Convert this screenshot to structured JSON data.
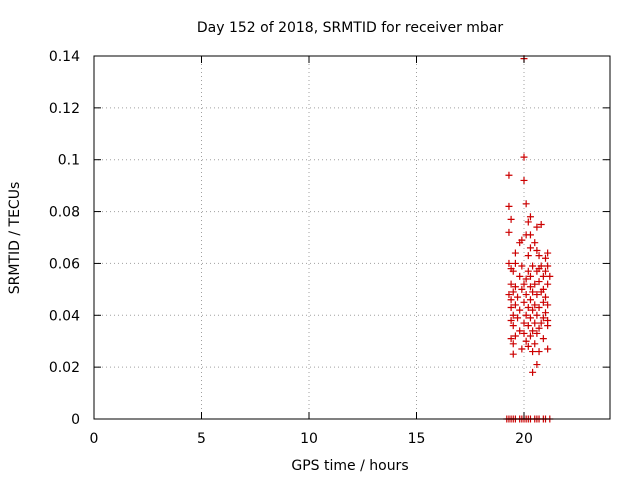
{
  "chart_data": {
    "type": "scatter",
    "title": "Day 152 of 2018, SRMTID for receiver mbar",
    "xlabel": "GPS time / hours",
    "ylabel": "SRMTID / TECUs",
    "xlim": [
      0,
      24
    ],
    "ylim": [
      0,
      0.14
    ],
    "x_ticks": [
      0,
      5,
      10,
      15,
      20
    ],
    "x_tick_labels": [
      "0",
      "5",
      "10",
      "15",
      "20"
    ],
    "y_ticks": [
      0,
      0.02,
      0.04,
      0.06,
      0.08,
      0.1,
      0.12,
      0.14
    ],
    "y_tick_labels": [
      "0",
      "0.02",
      "0.04",
      "0.06",
      "0.08",
      "0.1",
      "0.12",
      "0.14"
    ],
    "grid": true,
    "marker": "plus",
    "color": "#cc0000",
    "points": [
      [
        20.0,
        0.139
      ],
      [
        20.0,
        0.101
      ],
      [
        20.0,
        0.092
      ],
      [
        19.3,
        0.094
      ],
      [
        20.1,
        0.083
      ],
      [
        19.3,
        0.082
      ],
      [
        20.3,
        0.078
      ],
      [
        19.4,
        0.077
      ],
      [
        20.2,
        0.076
      ],
      [
        20.8,
        0.075
      ],
      [
        20.6,
        0.074
      ],
      [
        19.3,
        0.072
      ],
      [
        20.1,
        0.071
      ],
      [
        20.3,
        0.071
      ],
      [
        19.9,
        0.069
      ],
      [
        20.5,
        0.068
      ],
      [
        19.8,
        0.068
      ],
      [
        20.3,
        0.066
      ],
      [
        20.6,
        0.065
      ],
      [
        19.6,
        0.064
      ],
      [
        21.1,
        0.064
      ],
      [
        20.2,
        0.063
      ],
      [
        20.7,
        0.063
      ],
      [
        21.0,
        0.062
      ],
      [
        19.3,
        0.06
      ],
      [
        19.6,
        0.06
      ],
      [
        19.9,
        0.059
      ],
      [
        20.4,
        0.059
      ],
      [
        20.8,
        0.059
      ],
      [
        21.1,
        0.059
      ],
      [
        19.4,
        0.058
      ],
      [
        20.7,
        0.058
      ],
      [
        19.5,
        0.057
      ],
      [
        20.2,
        0.057
      ],
      [
        20.6,
        0.057
      ],
      [
        21.0,
        0.057
      ],
      [
        19.8,
        0.055
      ],
      [
        20.3,
        0.055
      ],
      [
        20.9,
        0.055
      ],
      [
        21.2,
        0.055
      ],
      [
        20.1,
        0.054
      ],
      [
        20.7,
        0.053
      ],
      [
        19.4,
        0.052
      ],
      [
        20.0,
        0.052
      ],
      [
        20.5,
        0.052
      ],
      [
        21.1,
        0.052
      ],
      [
        19.6,
        0.051
      ],
      [
        20.3,
        0.051
      ],
      [
        20.9,
        0.05
      ],
      [
        19.9,
        0.05
      ],
      [
        19.5,
        0.049
      ],
      [
        20.4,
        0.049
      ],
      [
        20.8,
        0.049
      ],
      [
        19.3,
        0.048
      ],
      [
        20.1,
        0.048
      ],
      [
        20.6,
        0.048
      ],
      [
        21.0,
        0.047
      ],
      [
        19.7,
        0.047
      ],
      [
        20.3,
        0.046
      ],
      [
        19.4,
        0.046
      ],
      [
        20.9,
        0.045
      ],
      [
        20.0,
        0.045
      ],
      [
        20.5,
        0.044
      ],
      [
        21.1,
        0.044
      ],
      [
        19.6,
        0.044
      ],
      [
        19.4,
        0.043
      ],
      [
        20.2,
        0.043
      ],
      [
        20.7,
        0.043
      ],
      [
        19.8,
        0.042
      ],
      [
        20.4,
        0.042
      ],
      [
        21.0,
        0.041
      ],
      [
        19.5,
        0.04
      ],
      [
        20.1,
        0.04
      ],
      [
        20.6,
        0.04
      ],
      [
        20.9,
        0.039
      ],
      [
        19.7,
        0.039
      ],
      [
        20.3,
        0.039
      ],
      [
        21.1,
        0.038
      ],
      [
        19.4,
        0.038
      ],
      [
        20.0,
        0.037
      ],
      [
        20.5,
        0.037
      ],
      [
        20.8,
        0.037
      ],
      [
        19.5,
        0.036
      ],
      [
        20.2,
        0.036
      ],
      [
        21.1,
        0.036
      ],
      [
        20.7,
        0.035
      ],
      [
        19.8,
        0.034
      ],
      [
        20.4,
        0.034
      ],
      [
        20.0,
        0.033
      ],
      [
        20.6,
        0.033
      ],
      [
        19.6,
        0.032
      ],
      [
        20.3,
        0.032
      ],
      [
        19.4,
        0.031
      ],
      [
        20.9,
        0.031
      ],
      [
        20.1,
        0.03
      ],
      [
        19.5,
        0.029
      ],
      [
        20.5,
        0.029
      ],
      [
        20.2,
        0.028
      ],
      [
        19.9,
        0.027
      ],
      [
        21.1,
        0.027
      ],
      [
        20.4,
        0.026
      ],
      [
        20.7,
        0.026
      ],
      [
        19.5,
        0.025
      ],
      [
        20.6,
        0.021
      ],
      [
        20.4,
        0.018
      ],
      [
        19.2,
        0.0
      ],
      [
        19.3,
        0.0
      ],
      [
        19.4,
        0.0
      ],
      [
        19.5,
        0.0
      ],
      [
        19.6,
        0.0
      ],
      [
        19.8,
        0.0
      ],
      [
        19.9,
        0.0
      ],
      [
        20.0,
        0.0
      ],
      [
        20.1,
        0.0
      ],
      [
        20.2,
        0.0
      ],
      [
        20.3,
        0.0
      ],
      [
        20.5,
        0.0
      ],
      [
        20.6,
        0.0
      ],
      [
        20.7,
        0.0
      ],
      [
        20.9,
        0.0
      ],
      [
        21.0,
        0.0
      ],
      [
        21.2,
        0.0
      ]
    ]
  }
}
